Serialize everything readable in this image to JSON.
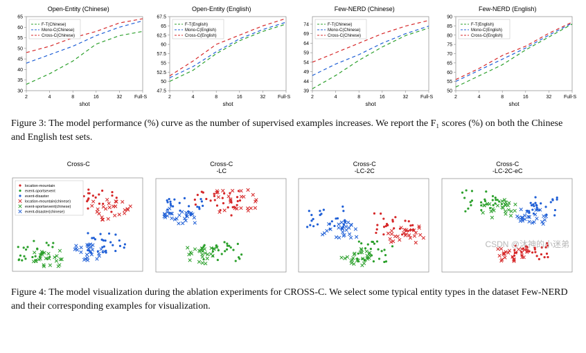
{
  "figure3": {
    "caption": "Figure 3: The model performance (%) curve as the number of supervised examples increases. We report the F₁ scores (%) on both the Chinese and English test sets.",
    "xlabel": "shot",
    "xticks": [
      "2",
      "4",
      "8",
      "16",
      "32",
      "Full-Set"
    ],
    "legend_series": [
      "F-T",
      "Mono-C",
      "Cross-C"
    ],
    "series_colors": {
      "F-T": "#2ca02c",
      "Mono-C": "#1f5fd6",
      "Cross-C": "#d62728"
    },
    "dash": "5,4",
    "line_width": 1.2,
    "panels": [
      {
        "title": "Open-Entity (Chinese)",
        "legend_suffix": "(Chinese)",
        "ylim": [
          30,
          65
        ],
        "ytick_step": 5,
        "series": {
          "F-T": [
            33,
            38,
            44,
            52,
            56,
            58
          ],
          "Mono-C": [
            43,
            47,
            51,
            56,
            60,
            63
          ],
          "Cross-C": [
            48,
            51,
            55,
            58,
            62,
            64
          ]
        }
      },
      {
        "title": "Open-Entity (English)",
        "legend_suffix": "(English)",
        "ylim": [
          47.5,
          67.5
        ],
        "ytick_step": 2.5,
        "series": {
          "F-T": [
            50,
            53,
            57.5,
            61,
            63.5,
            65.5
          ],
          "Mono-C": [
            51,
            54,
            58,
            61.5,
            64,
            66
          ],
          "Cross-C": [
            51.5,
            55.5,
            60,
            62.5,
            65,
            67
          ]
        }
      },
      {
        "title": "Few-NERD (Chinese)",
        "legend_suffix": "(Chinese)",
        "ylim": [
          39,
          78
        ],
        "ytick_step": 5,
        "series": {
          "F-T": [
            40,
            47,
            55,
            62,
            68,
            72
          ],
          "Mono-C": [
            47,
            53,
            58,
            64,
            69,
            73
          ],
          "Cross-C": [
            54,
            59,
            64,
            69,
            73,
            76
          ]
        }
      },
      {
        "title": "Few-NERD (English)",
        "legend_suffix": "(English)",
        "ylim": [
          50,
          90
        ],
        "ytick_step": 5,
        "series": {
          "F-T": [
            52,
            58,
            64,
            72,
            79,
            86
          ],
          "Mono-C": [
            55,
            61,
            67,
            73,
            80,
            86.5
          ],
          "Cross-C": [
            56,
            62,
            69,
            74,
            81,
            87
          ]
        }
      }
    ]
  },
  "figure4": {
    "caption": "Figure 4: The model visualization during the ablation experiments for CROSS-C. We select some typical entity types in the dataset Few-NERD and their corresponding examples for visualization.",
    "panels": [
      {
        "title": "Cross-C",
        "subtitle": ""
      },
      {
        "title": "Cross-C",
        "subtitle": "-LC"
      },
      {
        "title": "Cross-C",
        "subtitle": "-LC-2C"
      },
      {
        "title": "Cross-C",
        "subtitle": "-LC-2C-eC"
      }
    ],
    "marker_colors": {
      "location-mountain": "#d62728",
      "event-sportsevent": "#2ca02c",
      "event-disaster": "#1f5fd6",
      "location-mountain(chinese)": "#d62728",
      "event-sportsevent(chinese)": "#2ca02c",
      "event-disaster(chinese)": "#1f5fd6"
    },
    "marker_shapes": {
      "location-mountain": "dot",
      "event-sportsevent": "dot",
      "event-disaster": "dot",
      "location-mountain(chinese)": "cross",
      "event-sportsevent(chinese)": "cross",
      "event-disaster(chinese)": "cross"
    },
    "legend_items": [
      "location-mountain",
      "event-sportsevent",
      "event-disaster",
      "location-mountain(chinese)",
      "event-sportsevent(chinese)",
      "event-disaster(chinese)"
    ],
    "cluster_layouts": [
      {
        "location-mountain": [
          0.62,
          0.25,
          0.18
        ],
        "location-mountain(chinese)": [
          0.76,
          0.34,
          0.15
        ],
        "event-sportsevent": [
          0.18,
          0.78,
          0.14
        ],
        "event-sportsevent(chinese)": [
          0.28,
          0.86,
          0.12
        ],
        "event-disaster": [
          0.72,
          0.7,
          0.15
        ],
        "event-disaster(chinese)": [
          0.6,
          0.8,
          0.12
        ]
      },
      {
        "location-mountain": [
          0.48,
          0.28,
          0.2
        ],
        "location-mountain(chinese)": [
          0.62,
          0.24,
          0.16
        ],
        "event-sportsevent": [
          0.5,
          0.78,
          0.16
        ],
        "event-sportsevent(chinese)": [
          0.36,
          0.82,
          0.12
        ],
        "event-disaster": [
          0.22,
          0.3,
          0.14
        ],
        "event-disaster(chinese)": [
          0.18,
          0.4,
          0.12
        ]
      },
      {
        "location-mountain": [
          0.74,
          0.48,
          0.16
        ],
        "location-mountain(chinese)": [
          0.82,
          0.6,
          0.14
        ],
        "event-sportsevent": [
          0.58,
          0.78,
          0.16
        ],
        "event-sportsevent(chinese)": [
          0.45,
          0.84,
          0.12
        ],
        "event-disaster": [
          0.22,
          0.42,
          0.16
        ],
        "event-disaster(chinese)": [
          0.32,
          0.55,
          0.14
        ]
      },
      {
        "location-mountain": [
          0.68,
          0.78,
          0.14
        ],
        "location-mountain(chinese)": [
          0.54,
          0.84,
          0.12
        ],
        "event-sportsevent": [
          0.3,
          0.24,
          0.16
        ],
        "event-sportsevent(chinese)": [
          0.44,
          0.32,
          0.13
        ],
        "event-disaster": [
          0.78,
          0.3,
          0.14
        ],
        "event-disaster(chinese)": [
          0.68,
          0.4,
          0.12
        ]
      }
    ],
    "points_per_cluster": 26
  },
  "watermark": "CSDN @沐神的小迷弟"
}
